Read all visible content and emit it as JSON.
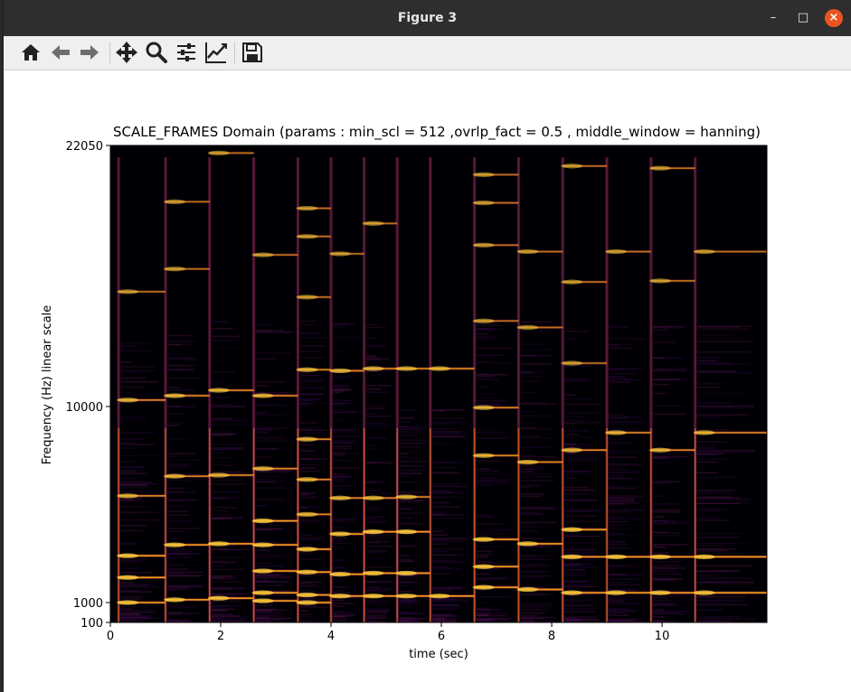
{
  "window": {
    "title": "Figure 3",
    "minimize": "–",
    "maximize": "□",
    "close": "×"
  },
  "toolbar": {
    "items": [
      {
        "name": "home-icon"
      },
      {
        "name": "back-arrow-icon"
      },
      {
        "name": "forward-arrow-icon"
      },
      {
        "name": "pan-move-icon"
      },
      {
        "name": "zoom-magnifier-icon"
      },
      {
        "name": "configure-subplots-icon"
      },
      {
        "name": "edit-axis-icon"
      },
      {
        "name": "save-disk-icon"
      }
    ]
  },
  "chart_data": {
    "type": "heatmap",
    "title": "SCALE_FRAMES Domain (params : min_scl = 512 ,ovrlp_fact = 0.5 , middle_window = hanning)",
    "xlabel": "time (sec)",
    "ylabel": "Frequency (Hz) linear scale",
    "xlim": [
      0,
      11.9
    ],
    "ylim": [
      100,
      22050
    ],
    "x_ticks": [
      0,
      2,
      4,
      6,
      8,
      10
    ],
    "x_tick_labels": [
      "0",
      "2",
      "4",
      "6",
      "8",
      "10"
    ],
    "y_ticks": [
      100,
      1000,
      10000,
      22050
    ],
    "y_tick_labels": [
      "100",
      "1000",
      "10000",
      "22050"
    ],
    "colormap": "inferno",
    "background_color": "#000004",
    "grid": false,
    "note_onsets_sec": [
      0.15,
      1.0,
      1.8,
      2.6,
      3.4,
      4.0,
      4.6,
      5.2,
      5.8,
      6.6,
      7.4,
      8.2,
      9.0,
      9.8,
      10.6
    ],
    "notes": [
      {
        "onset": 0.15,
        "end": 1.0,
        "harmonics_hz": [
          1000,
          2150,
          3150,
          5900,
          10300,
          15300
        ]
      },
      {
        "onset": 1.0,
        "end": 1.8,
        "harmonics_hz": [
          1130,
          3650,
          6800,
          10500,
          16350,
          19450
        ]
      },
      {
        "onset": 1.8,
        "end": 2.6,
        "harmonics_hz": [
          1200,
          3700,
          6850,
          10750,
          21700
        ]
      },
      {
        "onset": 2.6,
        "end": 3.4,
        "harmonics_hz": [
          1080,
          1450,
          2450,
          3650,
          4750,
          7150,
          10500,
          17000
        ]
      },
      {
        "onset": 3.4,
        "end": 4.0,
        "harmonics_hz": [
          1000,
          1350,
          2400,
          3450,
          5050,
          6650,
          8500,
          11700,
          15050,
          17850,
          19150
        ]
      },
      {
        "onset": 4.0,
        "end": 4.6,
        "harmonics_hz": [
          1300,
          2300,
          4150,
          5800,
          11650,
          17050
        ]
      },
      {
        "onset": 4.6,
        "end": 5.2,
        "harmonics_hz": [
          1300,
          2350,
          4250,
          5800,
          11750,
          18450
        ]
      },
      {
        "onset": 5.2,
        "end": 5.8,
        "harmonics_hz": [
          1300,
          2350,
          4250,
          5850,
          11750
        ]
      },
      {
        "onset": 5.8,
        "end": 6.6,
        "harmonics_hz": [
          1300,
          11750
        ]
      },
      {
        "onset": 6.6,
        "end": 7.4,
        "harmonics_hz": [
          1700,
          2650,
          3900,
          7750,
          9950,
          13950,
          17450,
          19400,
          20700
        ]
      },
      {
        "onset": 7.4,
        "end": 8.2,
        "harmonics_hz": [
          1600,
          3700,
          7450,
          13650,
          17150
        ]
      },
      {
        "onset": 8.2,
        "end": 9.0,
        "harmonics_hz": [
          1450,
          3100,
          4350,
          8000,
          12000,
          15750,
          21100
        ]
      },
      {
        "onset": 9.0,
        "end": 9.8,
        "harmonics_hz": [
          1450,
          3100,
          8800,
          17150
        ]
      },
      {
        "onset": 9.8,
        "end": 10.6,
        "harmonics_hz": [
          1450,
          3100,
          8000,
          15800,
          21000
        ]
      },
      {
        "onset": 10.6,
        "end": 11.9,
        "harmonics_hz": [
          1450,
          3100,
          8800,
          17150
        ]
      }
    ]
  }
}
